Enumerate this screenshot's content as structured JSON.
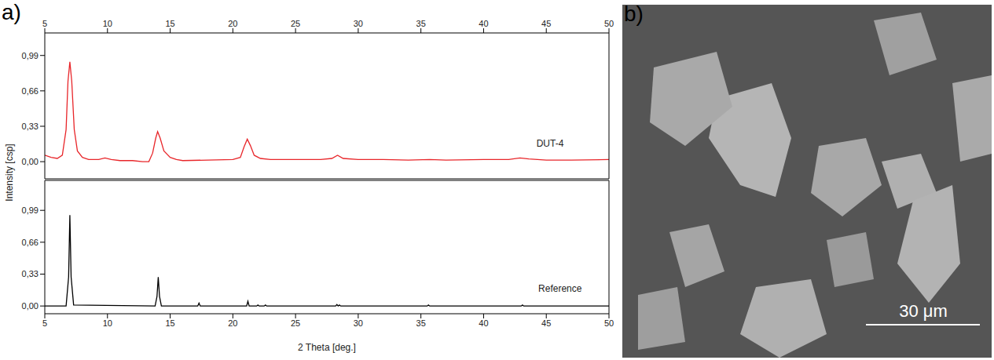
{
  "panel_labels": [
    "a)",
    "b)"
  ],
  "scale_bar": "30 μm",
  "chart_data": [
    {
      "type": "line",
      "x": [
        5,
        5.5,
        6,
        6.4,
        6.7,
        6.85,
        7.0,
        7.15,
        7.35,
        7.6,
        8,
        8.5,
        9.3,
        9.8,
        10.3,
        11,
        12,
        12.8,
        13.3,
        13.6,
        13.85,
        14.0,
        14.2,
        14.5,
        15,
        15.5,
        16,
        18,
        20,
        20.6,
        20.9,
        21.15,
        21.4,
        21.7,
        22.2,
        23,
        25,
        27,
        27.9,
        28.35,
        28.8,
        30,
        32,
        34,
        35.7,
        37,
        40,
        42,
        42.9,
        43.6,
        45,
        47,
        50
      ],
      "series": [
        {
          "name": "DUT-4",
          "color": "#e8262a",
          "values": [
            0.06,
            0.04,
            0.03,
            0.06,
            0.3,
            0.75,
            0.93,
            0.75,
            0.3,
            0.1,
            0.04,
            0.02,
            0.02,
            0.035,
            0.02,
            0.01,
            0.01,
            0.0,
            0.0,
            0.08,
            0.22,
            0.28,
            0.22,
            0.1,
            0.04,
            0.02,
            0.01,
            0.015,
            0.02,
            0.04,
            0.14,
            0.21,
            0.15,
            0.06,
            0.03,
            0.02,
            0.02,
            0.02,
            0.03,
            0.06,
            0.03,
            0.02,
            0.02,
            0.015,
            0.02,
            0.015,
            0.02,
            0.02,
            0.035,
            0.025,
            0.015,
            0.015,
            0.02
          ]
        }
      ],
      "annotations": [
        {
          "text": "DUT-4",
          "x": 45.3,
          "y": 0.17
        }
      ],
      "xlim": [
        5,
        50
      ],
      "xticks": [
        5,
        10,
        15,
        20,
        25,
        30,
        35,
        40,
        45,
        50
      ],
      "ylim": [
        -0.16,
        1.2
      ],
      "yticks": [
        {
          "value": 0,
          "label": "0,00"
        },
        {
          "value": 0.33,
          "label": "0,33"
        },
        {
          "value": 0.66,
          "label": "0,66"
        },
        {
          "value": 0.99,
          "label": "0,99"
        }
      ]
    },
    {
      "type": "line",
      "x": [
        5,
        6.7,
        6.9,
        7.0,
        7.1,
        7.3,
        13.8,
        13.95,
        14.05,
        14.15,
        14.3,
        17.2,
        17.3,
        17.4,
        21.1,
        21.2,
        21.3,
        21.9,
        22.0,
        22.1,
        22.5,
        22.6,
        22.7,
        28.2,
        28.3,
        28.4,
        28.5,
        28.6,
        35.5,
        35.6,
        35.7,
        43.0,
        43.1,
        43.2,
        50
      ],
      "series": [
        {
          "name": "Reference",
          "color": "#000000",
          "values": [
            0,
            0,
            0.3,
            0.94,
            0.3,
            0.01,
            0,
            0.1,
            0.3,
            0.1,
            0,
            0,
            0.03,
            0,
            0,
            0.05,
            0,
            0,
            0.01,
            0,
            0,
            0.01,
            0,
            0,
            0.015,
            0,
            0.01,
            0,
            0,
            0.01,
            0,
            0,
            0.01,
            0,
            0
          ]
        }
      ],
      "annotations": [
        {
          "text": "Reference",
          "x": 46.1,
          "y": 0.18
        }
      ],
      "xlabel": "2 Theta [deg.]",
      "ylabel": "Intensity [csp]",
      "xlim": [
        5,
        50
      ],
      "xticks": [
        5,
        10,
        15,
        20,
        25,
        30,
        35,
        40,
        45,
        50
      ],
      "ylim": [
        -0.08,
        1.3
      ],
      "yticks": [
        {
          "value": 0,
          "label": "0,00"
        },
        {
          "value": 0.33,
          "label": "0,33"
        },
        {
          "value": 0.66,
          "label": "0,66"
        },
        {
          "value": 0.99,
          "label": "0,99"
        }
      ]
    }
  ]
}
